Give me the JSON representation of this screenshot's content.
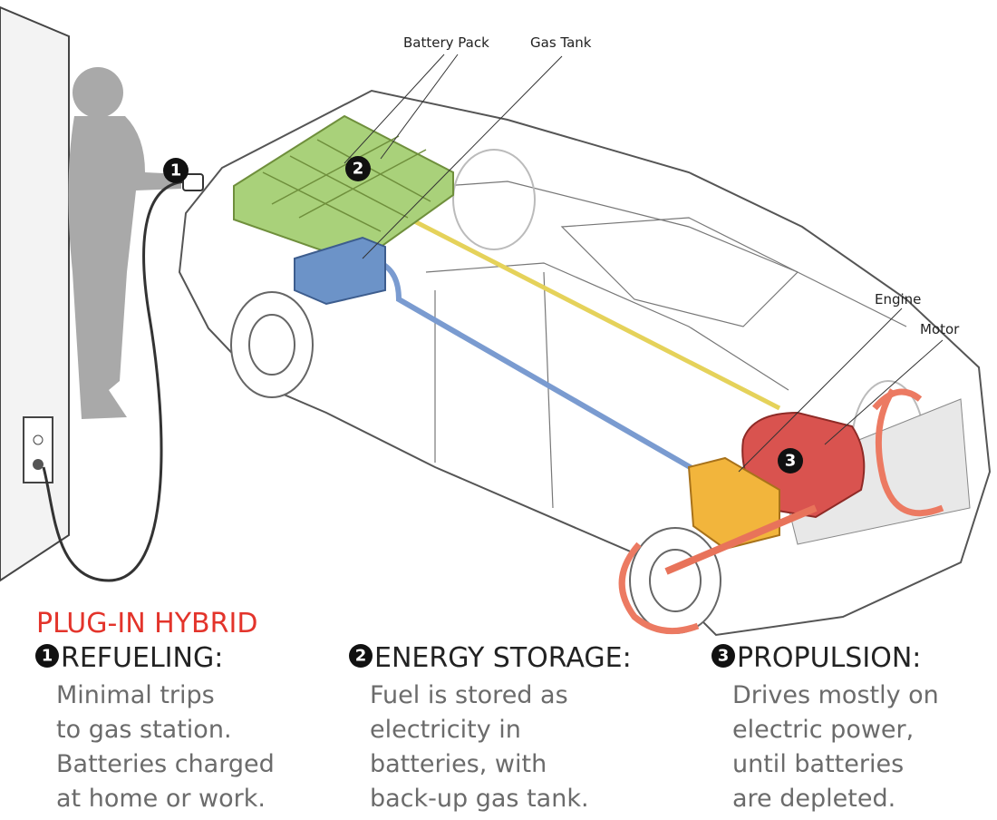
{
  "diagram": {
    "callouts": [
      {
        "label": "Battery Pack"
      },
      {
        "label": "Gas Tank"
      },
      {
        "label": "Engine"
      },
      {
        "label": "Motor"
      }
    ],
    "markers": [
      "1",
      "2",
      "3"
    ]
  },
  "title": "PLUG-IN HYBRID",
  "sections": [
    {
      "number": "1",
      "heading": "REFUELING:",
      "lines": [
        "Minimal trips",
        "to gas station.",
        "Batteries charged",
        "at home or work."
      ]
    },
    {
      "number": "2",
      "heading": "ENERGY STORAGE:",
      "lines": [
        "Fuel is stored as",
        "electricity in",
        "batteries, with",
        "back-up gas tank."
      ]
    },
    {
      "number": "3",
      "heading": "PROPULSION:",
      "lines": [
        "Drives mostly on",
        "electric power,",
        "until batteries",
        "are depleted."
      ]
    }
  ]
}
